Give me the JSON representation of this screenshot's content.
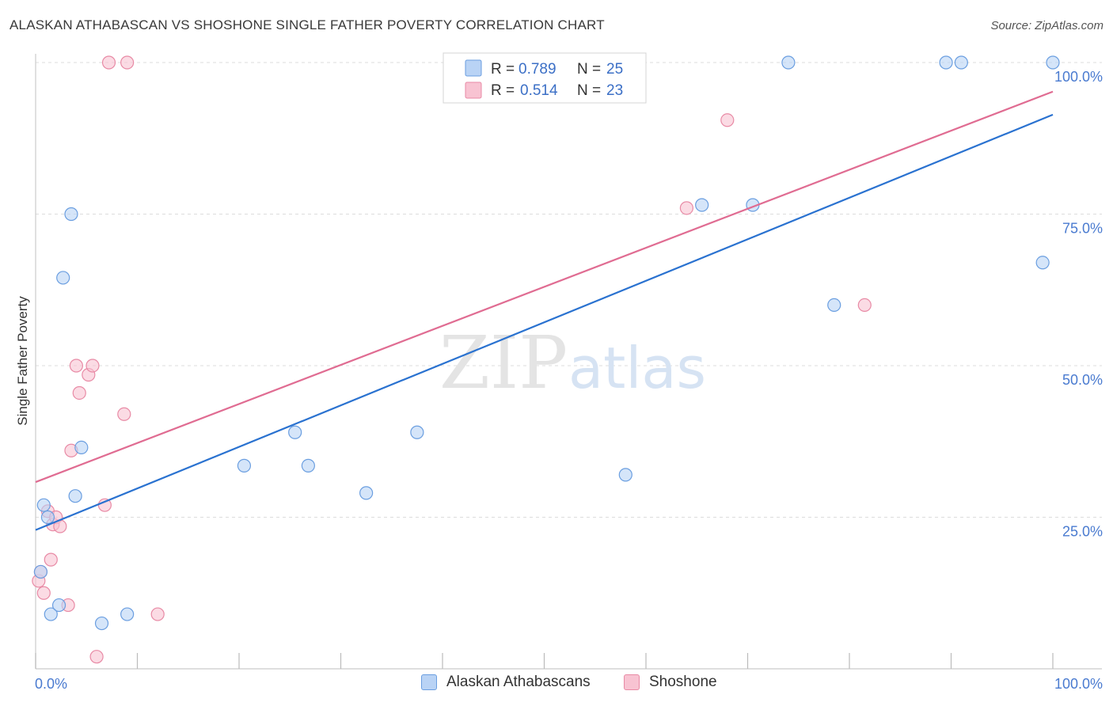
{
  "title": "ALASKAN ATHABASCAN VS SHOSHONE SINGLE FATHER POVERTY CORRELATION CHART",
  "source": "Source: ZipAtlas.com",
  "watermark": {
    "zip": "ZIP",
    "atlas": "atlas"
  },
  "colors": {
    "blue_fill": "#b9d3f5",
    "blue_stroke": "#6a9ee0",
    "blue_line": "#2a72d0",
    "pink_fill": "#f8c3d2",
    "pink_stroke": "#e88aa5",
    "pink_line": "#e06c92",
    "grid": "#dddddd",
    "tick_text": "#4a7bd0"
  },
  "legend": {
    "rows": [
      {
        "r_label": "R =",
        "r_value": "0.789",
        "n_label": "N =",
        "n_value": "25"
      },
      {
        "r_label": "R =",
        "r_value": "0.514",
        "n_label": "N =",
        "n_value": "23"
      }
    ]
  },
  "bottom_legend": {
    "series_a": "Alaskan Athabascans",
    "series_b": "Shoshone"
  },
  "chart_data": {
    "type": "scatter",
    "title": "ALASKAN ATHABASCAN VS SHOSHONE SINGLE FATHER POVERTY CORRELATION CHART",
    "xlabel": "",
    "ylabel": "Single Father Poverty",
    "xlim": [
      0,
      100
    ],
    "ylim": [
      0,
      100
    ],
    "x_tick_labels": [
      "0.0%",
      "100.0%"
    ],
    "y_tick_labels": [
      "25.0%",
      "50.0%",
      "75.0%",
      "100.0%"
    ],
    "y_ticks": [
      25,
      50,
      75,
      100
    ],
    "grid": true,
    "legend_position": "top-center",
    "series": [
      {
        "name": "Alaskan Athabascans",
        "r": 0.789,
        "n": 25,
        "trend": {
          "x": [
            0,
            100
          ],
          "y": [
            22.9,
            91.4
          ]
        },
        "points": [
          {
            "x": 0.5,
            "y": 16.0
          },
          {
            "x": 0.8,
            "y": 27.0
          },
          {
            "x": 1.2,
            "y": 25.0
          },
          {
            "x": 1.5,
            "y": 9.0
          },
          {
            "x": 2.3,
            "y": 10.5
          },
          {
            "x": 2.7,
            "y": 64.5
          },
          {
            "x": 3.5,
            "y": 75.0
          },
          {
            "x": 3.9,
            "y": 28.5
          },
          {
            "x": 4.5,
            "y": 36.5
          },
          {
            "x": 6.5,
            "y": 7.5
          },
          {
            "x": 9.0,
            "y": 9.0
          },
          {
            "x": 20.5,
            "y": 33.5
          },
          {
            "x": 25.5,
            "y": 39.0
          },
          {
            "x": 26.8,
            "y": 33.5
          },
          {
            "x": 32.5,
            "y": 29.0
          },
          {
            "x": 37.5,
            "y": 39.0
          },
          {
            "x": 58.0,
            "y": 32.0
          },
          {
            "x": 65.5,
            "y": 76.5
          },
          {
            "x": 70.5,
            "y": 76.5
          },
          {
            "x": 74.0,
            "y": 100.0
          },
          {
            "x": 78.5,
            "y": 60.0
          },
          {
            "x": 89.5,
            "y": 100.0
          },
          {
            "x": 91.0,
            "y": 100.0
          },
          {
            "x": 99.0,
            "y": 67.0
          },
          {
            "x": 100.0,
            "y": 100.0
          }
        ]
      },
      {
        "name": "Shoshone",
        "r": 0.514,
        "n": 23,
        "trend": {
          "x": [
            0,
            100
          ],
          "y": [
            30.8,
            95.2
          ]
        },
        "points": [
          {
            "x": 0.3,
            "y": 14.5
          },
          {
            "x": 0.5,
            "y": 16.0
          },
          {
            "x": 0.8,
            "y": 12.5
          },
          {
            "x": 1.2,
            "y": 26.0
          },
          {
            "x": 1.5,
            "y": 18.0
          },
          {
            "x": 1.7,
            "y": 23.8
          },
          {
            "x": 2.0,
            "y": 25.0
          },
          {
            "x": 2.4,
            "y": 23.5
          },
          {
            "x": 3.2,
            "y": 10.5
          },
          {
            "x": 3.5,
            "y": 36.0
          },
          {
            "x": 4.0,
            "y": 50.0
          },
          {
            "x": 4.3,
            "y": 45.5
          },
          {
            "x": 5.2,
            "y": 48.5
          },
          {
            "x": 5.6,
            "y": 50.0
          },
          {
            "x": 6.0,
            "y": 2.0
          },
          {
            "x": 6.8,
            "y": 27.0
          },
          {
            "x": 7.2,
            "y": 100.0
          },
          {
            "x": 9.0,
            "y": 100.0
          },
          {
            "x": 8.7,
            "y": 42.0
          },
          {
            "x": 12.0,
            "y": 9.0
          },
          {
            "x": 64.0,
            "y": 76.0
          },
          {
            "x": 68.0,
            "y": 90.5
          },
          {
            "x": 81.5,
            "y": 60.0
          }
        ]
      }
    ]
  }
}
